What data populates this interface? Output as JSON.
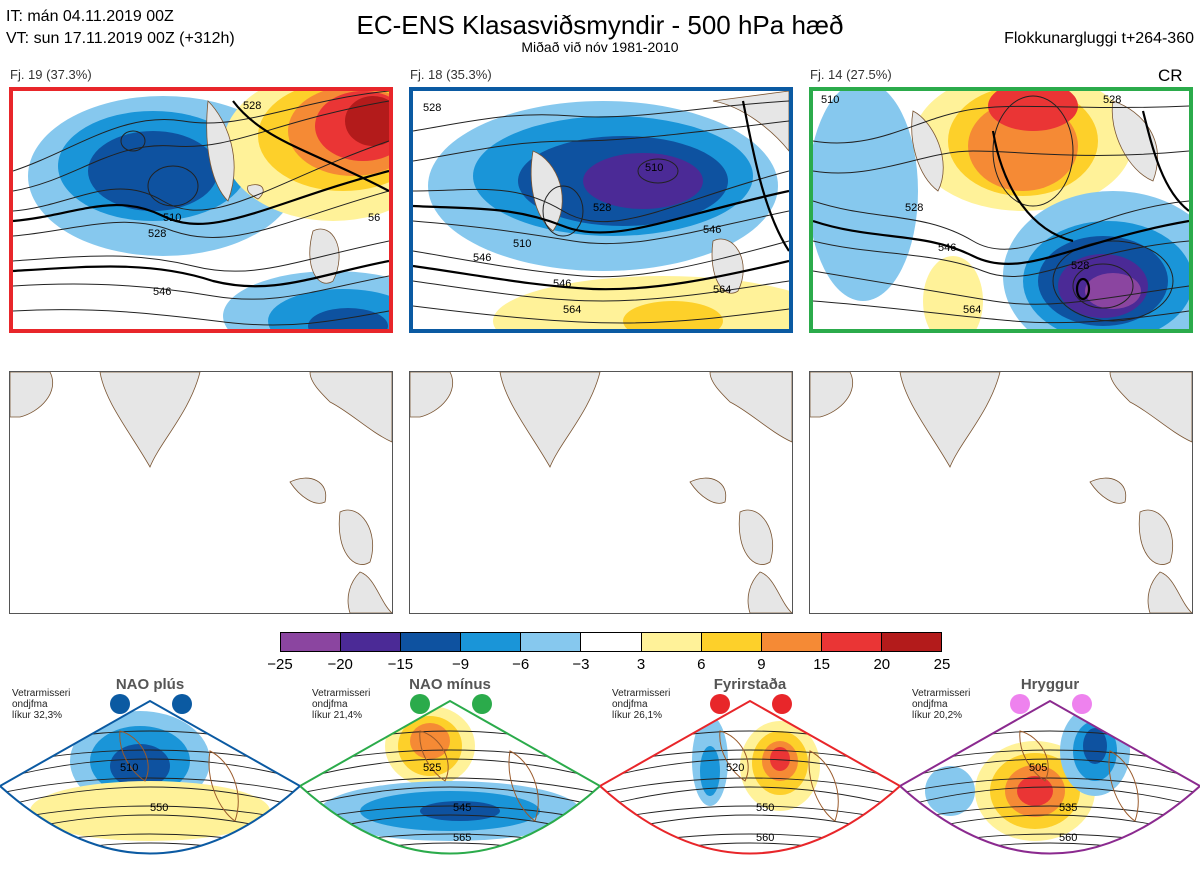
{
  "header": {
    "it_line": "IT: mán 04.11.2019 00Z",
    "vt_line": "VT: sun 17.11.2019 00Z  (+312h)",
    "title": "EC-ENS Klasasviðsmyndir - 500 hPa hæð",
    "subtitle": "Miðað við nóv 1981-2010",
    "window": "Flokkunargluggi t+264-360"
  },
  "clusters": [
    {
      "label": "Fj. 19 (37.3%)",
      "border_color": "#e8262a",
      "contours": [
        "510",
        "528",
        "546",
        "528",
        "56"
      ]
    },
    {
      "label": "Fj. 18 (35.3%)",
      "border_color": "#0b5aa2",
      "contours": [
        "510",
        "528",
        "546",
        "564",
        "564",
        "510",
        "546",
        "528",
        "546"
      ]
    },
    {
      "label": "Fj. 14 (27.5%)",
      "border_color": "#2bab4b",
      "extra": "CR",
      "contours": [
        "528",
        "546",
        "564",
        "528",
        "528",
        "510"
      ]
    }
  ],
  "colorbar": {
    "ticks": [
      "−25",
      "−20",
      "−15",
      "−9",
      "−6",
      "−3",
      "3",
      "6",
      "9",
      "15",
      "20",
      "25"
    ],
    "colors": [
      "#8b45a0",
      "#4b2a96",
      "#0e52a0",
      "#1a95d8",
      "#86c8ee",
      "#ffffff",
      "#fff299",
      "#fdd02a",
      "#f58a35",
      "#ea3535",
      "#b31b1b"
    ]
  },
  "regimes": [
    {
      "title": "NAO plús",
      "note": [
        "Vetrarmisseri",
        "ondjfma",
        "líkur 32,3%"
      ],
      "dot_color": "#0b5aa2",
      "border_color": "#0b5aa2",
      "contours": [
        "510",
        "550"
      ]
    },
    {
      "title": "NAO mínus",
      "note": [
        "Vetrarmisseri",
        "ondjfma",
        "líkur 21,4%"
      ],
      "dot_color": "#2bab4b",
      "border_color": "#2bab4b",
      "contours": [
        "525",
        "545",
        "565"
      ]
    },
    {
      "title": "Fyrirstaða",
      "note": [
        "Vetrarmisseri",
        "ondjfma",
        "líkur 26,1%"
      ],
      "dot_color": "#e8262a",
      "border_color": "#e8262a",
      "contours": [
        "520",
        "550",
        "560"
      ]
    },
    {
      "title": "Hryggur",
      "note": [
        "Vetrarmisseri",
        "ondjfma",
        "líkur 20,2%"
      ],
      "dot_color": "#ee82ee",
      "border_color": "#8b2a8f",
      "contours": [
        "505",
        "535",
        "560"
      ]
    }
  ]
}
